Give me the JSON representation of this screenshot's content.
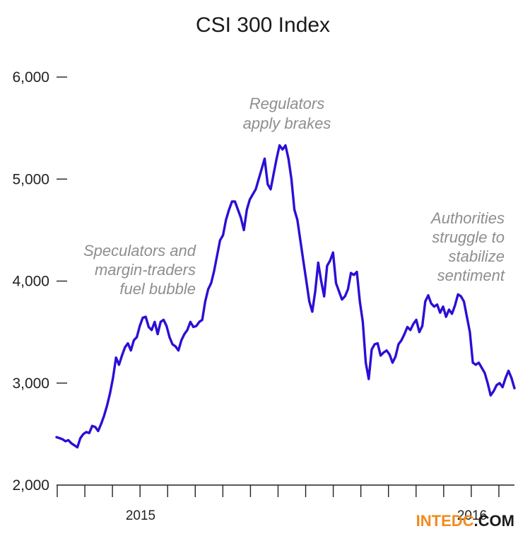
{
  "chart_data": {
    "type": "line",
    "title": "CSI 300 Index",
    "xlabel": "",
    "ylabel": "",
    "ylim": [
      2000,
      6000
    ],
    "y_ticks": [
      2000,
      3000,
      4000,
      5000,
      6000
    ],
    "y_tick_labels": [
      "2,000",
      "3,000",
      "4,000",
      "5,000",
      "6,000"
    ],
    "x_tick_labels": [
      "2015",
      "2016"
    ],
    "grid": false,
    "series_color": "#2a0fd6",
    "series": [
      {
        "values": [
          2470,
          2460,
          2450,
          2430,
          2440,
          2410,
          2390,
          2370,
          2460,
          2500,
          2520,
          2510,
          2580,
          2570,
          2530,
          2600,
          2680,
          2780,
          2900,
          3050,
          3250,
          3180,
          3270,
          3350,
          3390,
          3320,
          3420,
          3450,
          3560,
          3640,
          3650,
          3550,
          3520,
          3600,
          3480,
          3600,
          3620,
          3560,
          3450,
          3380,
          3360,
          3320,
          3420,
          3480,
          3520,
          3600,
          3550,
          3560,
          3600,
          3620,
          3800,
          3920,
          3980,
          4100,
          4250,
          4400,
          4450,
          4600,
          4700,
          4780,
          4780,
          4700,
          4620,
          4500,
          4700,
          4800,
          4850,
          4900,
          5000,
          5100,
          5200,
          4950,
          4900,
          5050,
          5200,
          5330,
          5290,
          5330,
          5200,
          5000,
          4700,
          4600,
          4400,
          4200,
          4000,
          3800,
          3700,
          3900,
          4180,
          4000,
          3850,
          4150,
          4200,
          4280,
          3980,
          3900,
          3820,
          3850,
          3920,
          4080,
          4060,
          4090,
          3800,
          3600,
          3200,
          3040,
          3330,
          3380,
          3390,
          3270,
          3300,
          3320,
          3280,
          3200,
          3260,
          3380,
          3420,
          3480,
          3550,
          3520,
          3580,
          3620,
          3500,
          3560,
          3800,
          3860,
          3780,
          3750,
          3770,
          3690,
          3750,
          3650,
          3720,
          3680,
          3760,
          3870,
          3850,
          3800,
          3650,
          3500,
          3200,
          3180,
          3200,
          3150,
          3100,
          3000,
          2880,
          2920,
          2980,
          3000,
          2960,
          3050,
          3120,
          3050,
          2950
        ]
      }
    ],
    "annotations": [
      {
        "lines": [
          "Speculators and",
          "margin-traders",
          "fuel bubble"
        ]
      },
      {
        "lines": [
          "Regulators",
          "apply brakes"
        ]
      },
      {
        "lines": [
          "Authorities",
          "struggle to",
          "stabilize",
          "sentiment"
        ]
      }
    ]
  },
  "watermark": {
    "part1": "INTEDC",
    "part2": ".COM",
    "color1": "#f28a1e",
    "color2": "#1a1a1a"
  }
}
